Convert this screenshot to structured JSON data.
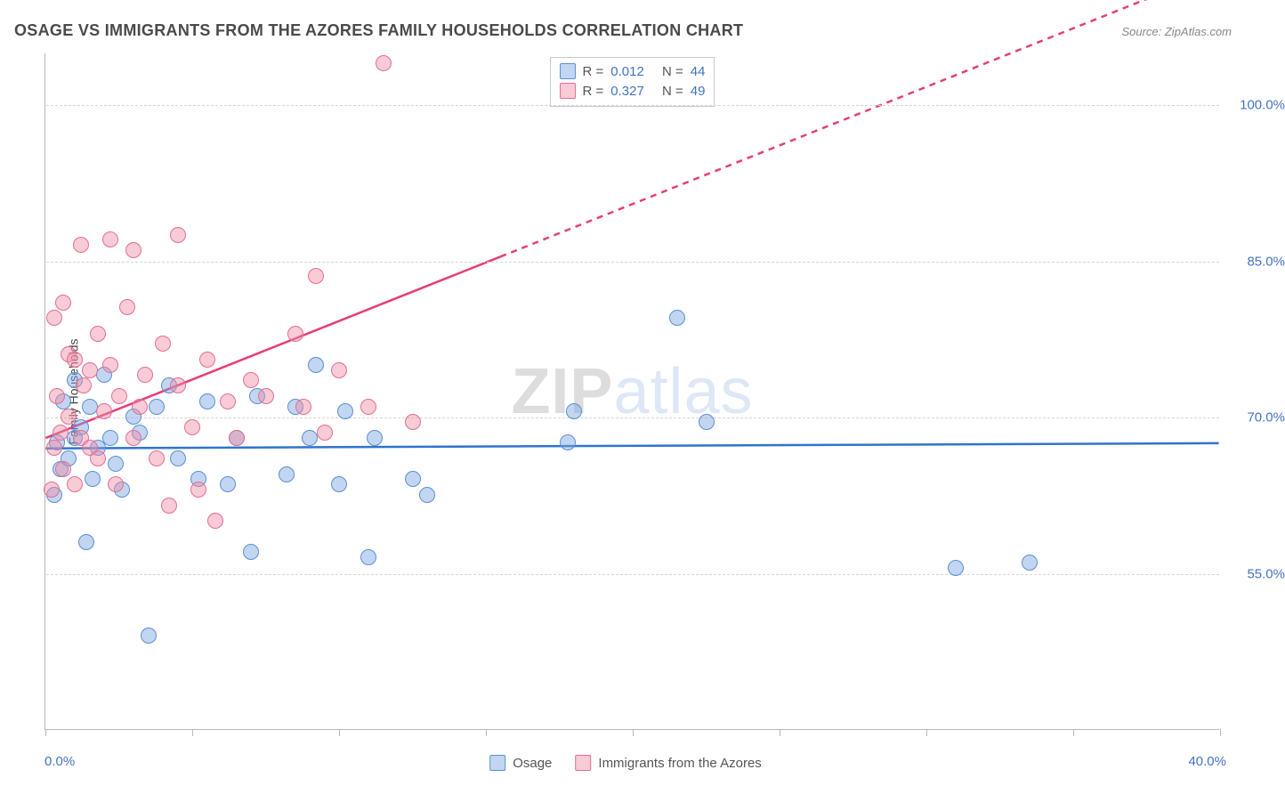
{
  "title": "OSAGE VS IMMIGRANTS FROM THE AZORES FAMILY HOUSEHOLDS CORRELATION CHART",
  "source": "Source: ZipAtlas.com",
  "watermark": {
    "zip": "ZIP",
    "atlas": "atlas"
  },
  "ylabel": "Family Households",
  "chart": {
    "type": "scatter",
    "x_min": 0,
    "x_max": 40,
    "y_min": 40,
    "y_max": 105,
    "x_ticks": [
      0,
      5,
      10,
      15,
      20,
      25,
      30,
      35,
      40
    ],
    "x_tick_labels": {
      "0": "0.0%",
      "40": "40.0%"
    },
    "y_gridlines": [
      55,
      70,
      85,
      100
    ],
    "y_tick_labels": {
      "55": "55.0%",
      "70": "70.0%",
      "85": "85.0%",
      "100": "100.0%"
    },
    "grid_color": "#d6d6d6",
    "axis_color": "#b8b8b8",
    "background_color": "#ffffff",
    "label_color": "#4472c4",
    "title_fontsize": 18,
    "label_fontsize": 14,
    "tick_fontsize": 15,
    "marker_radius": 9,
    "marker_border_width": 1.2
  },
  "series": [
    {
      "name": "Osage",
      "fill": "rgba(120,165,225,0.45)",
      "stroke": "#5b8fd6",
      "trend_color": "#2f74d0",
      "trend_width": 2.5,
      "R": "0.012",
      "N": "44",
      "trend": {
        "y_at_x0": 67.0,
        "y_at_x40": 67.5,
        "dashed_from_x": null
      },
      "points": [
        [
          0.3,
          62.5
        ],
        [
          0.4,
          67.5
        ],
        [
          0.5,
          65.0
        ],
        [
          0.6,
          71.5
        ],
        [
          0.8,
          66.0
        ],
        [
          1.0,
          68.0
        ],
        [
          1.0,
          73.5
        ],
        [
          1.2,
          69.0
        ],
        [
          1.4,
          58.0
        ],
        [
          1.5,
          71.0
        ],
        [
          1.6,
          64.0
        ],
        [
          1.8,
          67.0
        ],
        [
          2.0,
          74.0
        ],
        [
          2.2,
          68.0
        ],
        [
          2.4,
          65.5
        ],
        [
          2.6,
          63.0
        ],
        [
          3.0,
          70.0
        ],
        [
          3.2,
          68.5
        ],
        [
          3.5,
          49.0
        ],
        [
          3.8,
          71.0
        ],
        [
          4.2,
          73.0
        ],
        [
          4.5,
          66.0
        ],
        [
          5.2,
          64.0
        ],
        [
          5.5,
          71.5
        ],
        [
          6.2,
          63.5
        ],
        [
          6.5,
          68.0
        ],
        [
          7.0,
          57.0
        ],
        [
          7.2,
          72.0
        ],
        [
          8.2,
          64.5
        ],
        [
          8.5,
          71.0
        ],
        [
          9.0,
          68.0
        ],
        [
          9.2,
          75.0
        ],
        [
          10.0,
          63.5
        ],
        [
          10.2,
          70.5
        ],
        [
          11.0,
          56.5
        ],
        [
          11.2,
          68.0
        ],
        [
          12.5,
          64.0
        ],
        [
          13.0,
          62.5
        ],
        [
          17.8,
          67.5
        ],
        [
          18.0,
          70.5
        ],
        [
          21.5,
          79.5
        ],
        [
          22.5,
          69.5
        ],
        [
          31.0,
          55.5
        ],
        [
          33.5,
          56.0
        ]
      ]
    },
    {
      "name": "Immigrants from the Azores",
      "fill": "rgba(240,140,165,0.45)",
      "stroke": "#e36f93",
      "trend_color": "#e63e7a",
      "trend_width": 2.5,
      "R": "0.327",
      "N": "49",
      "trend": {
        "y_at_x0": 68.0,
        "y_at_x40": 113.0,
        "dashed_from_x": 15.5
      },
      "points": [
        [
          0.2,
          63.0
        ],
        [
          0.3,
          79.5
        ],
        [
          0.3,
          67.0
        ],
        [
          0.4,
          72.0
        ],
        [
          0.5,
          68.5
        ],
        [
          0.6,
          81.0
        ],
        [
          0.6,
          65.0
        ],
        [
          0.8,
          76.0
        ],
        [
          0.8,
          70.0
        ],
        [
          1.0,
          75.5
        ],
        [
          1.0,
          63.5
        ],
        [
          1.2,
          68.0
        ],
        [
          1.2,
          86.5
        ],
        [
          1.3,
          73.0
        ],
        [
          1.5,
          74.5
        ],
        [
          1.5,
          67.0
        ],
        [
          1.8,
          66.0
        ],
        [
          1.8,
          78.0
        ],
        [
          2.0,
          70.5
        ],
        [
          2.2,
          75.0
        ],
        [
          2.2,
          87.0
        ],
        [
          2.4,
          63.5
        ],
        [
          2.5,
          72.0
        ],
        [
          2.8,
          80.5
        ],
        [
          3.0,
          68.0
        ],
        [
          3.0,
          86.0
        ],
        [
          3.2,
          71.0
        ],
        [
          3.4,
          74.0
        ],
        [
          3.8,
          66.0
        ],
        [
          4.0,
          77.0
        ],
        [
          4.2,
          61.5
        ],
        [
          4.5,
          73.0
        ],
        [
          4.5,
          87.5
        ],
        [
          5.0,
          69.0
        ],
        [
          5.2,
          63.0
        ],
        [
          5.5,
          75.5
        ],
        [
          5.8,
          60.0
        ],
        [
          6.2,
          71.5
        ],
        [
          6.5,
          68.0
        ],
        [
          7.0,
          73.5
        ],
        [
          7.5,
          72.0
        ],
        [
          8.5,
          78.0
        ],
        [
          8.8,
          71.0
        ],
        [
          9.2,
          83.5
        ],
        [
          9.5,
          68.5
        ],
        [
          10.0,
          74.5
        ],
        [
          11.0,
          71.0
        ],
        [
          11.5,
          104.0
        ],
        [
          12.5,
          69.5
        ]
      ]
    }
  ],
  "statsbox": {
    "R_label": "R =",
    "N_label": "N ="
  }
}
